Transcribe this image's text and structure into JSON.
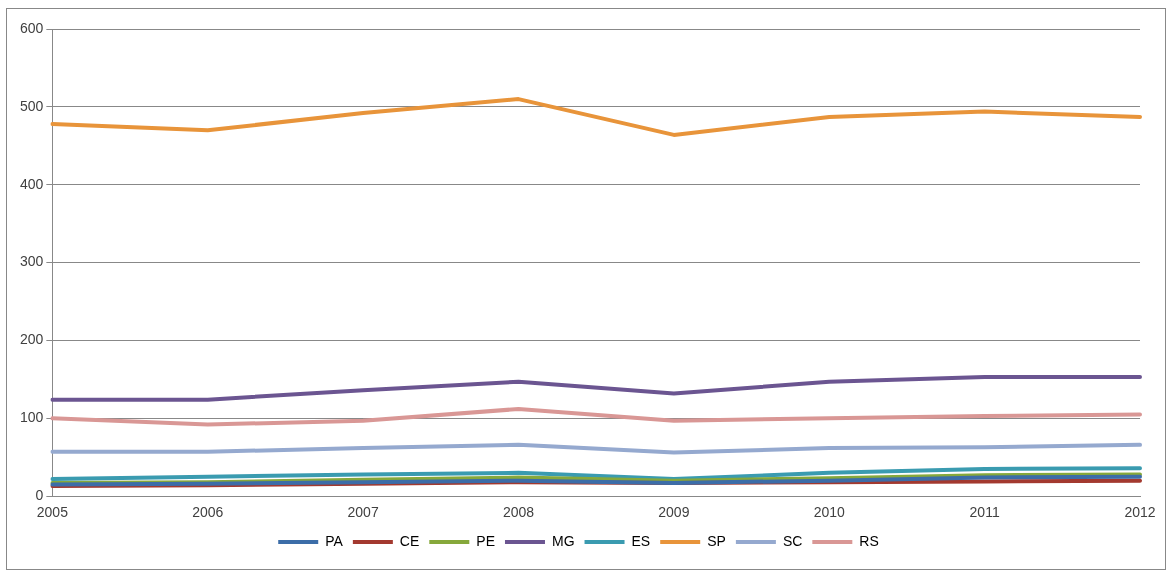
{
  "chart_data": {
    "type": "line",
    "categories": [
      "2005",
      "2006",
      "2007",
      "2008",
      "2009",
      "2010",
      "2011",
      "2012"
    ],
    "series": [
      {
        "name": "PA",
        "color": "#3c6da8",
        "values": [
          15,
          16,
          18,
          20,
          17,
          20,
          24,
          25
        ]
      },
      {
        "name": "CE",
        "color": "#a3392f",
        "values": [
          13,
          14,
          16,
          18,
          17,
          18,
          19,
          20
        ]
      },
      {
        "name": "PE",
        "color": "#86a83b",
        "values": [
          17,
          18,
          21,
          24,
          20,
          23,
          27,
          28
        ]
      },
      {
        "name": "MG",
        "color": "#6b5591",
        "values": [
          124,
          124,
          136,
          147,
          132,
          147,
          153,
          153
        ]
      },
      {
        "name": "ES",
        "color": "#3a9bb0",
        "values": [
          22,
          25,
          28,
          30,
          22,
          30,
          35,
          36
        ]
      },
      {
        "name": "SP",
        "color": "#e8943a",
        "values": [
          478,
          470,
          492,
          510,
          464,
          487,
          494,
          487
        ]
      },
      {
        "name": "SC",
        "color": "#95a9cf",
        "values": [
          57,
          57,
          62,
          66,
          56,
          62,
          63,
          66
        ]
      },
      {
        "name": "RS",
        "color": "#d99795",
        "values": [
          100,
          92,
          97,
          112,
          97,
          100,
          103,
          105
        ]
      }
    ],
    "ylim": [
      0,
      600
    ],
    "yticks": [
      0,
      100,
      200,
      300,
      400,
      500,
      600
    ],
    "grid": "y",
    "legend": "bottom",
    "marker": "none",
    "line_style": "solid"
  }
}
